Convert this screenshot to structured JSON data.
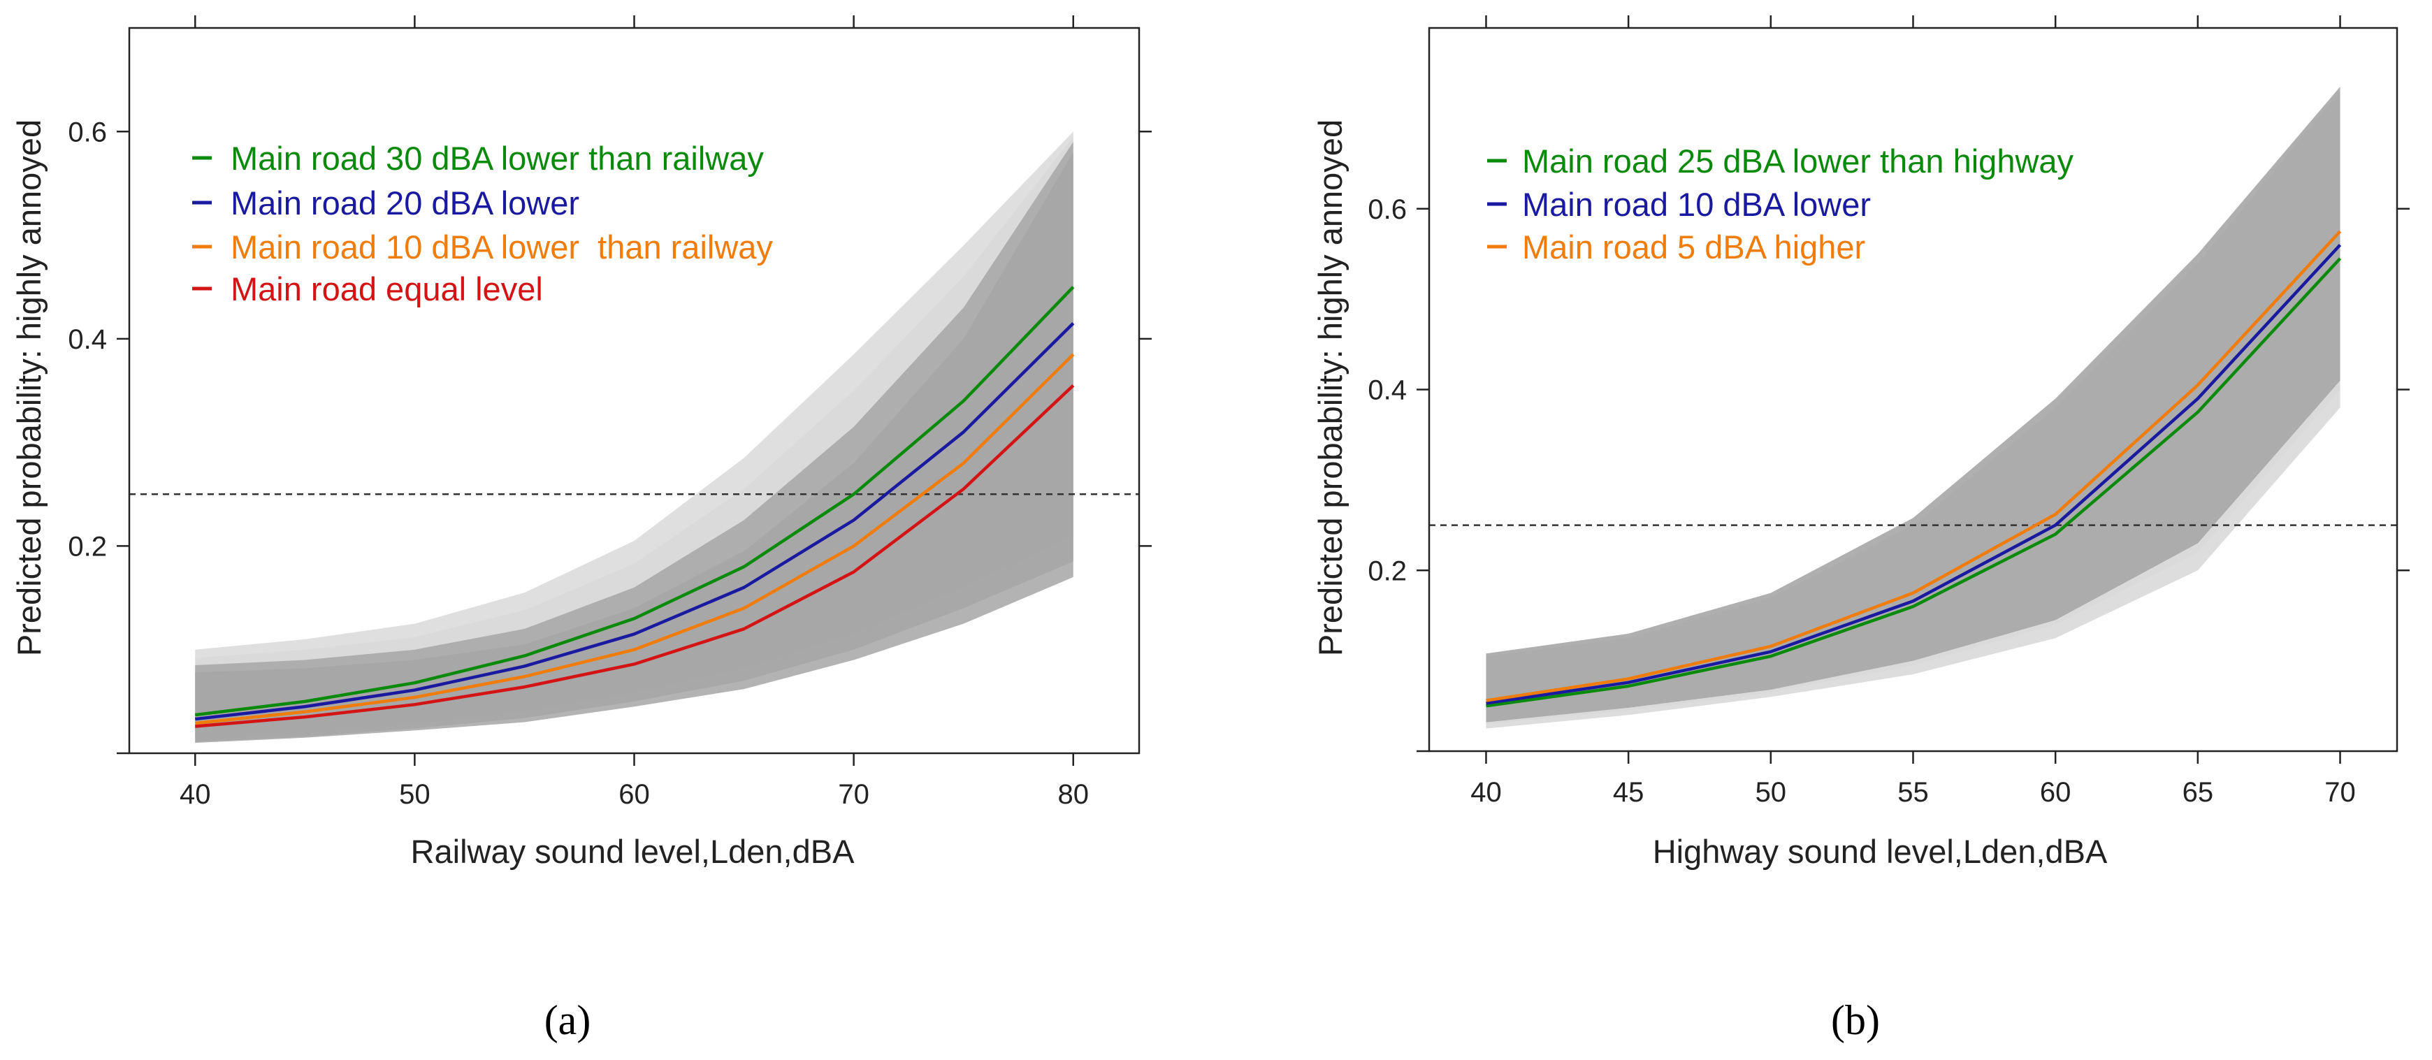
{
  "colors": {
    "green": "#0a8a0a",
    "blue": "#1a1aa0",
    "orange": "#f07c0c",
    "red": "#d41414",
    "band_dark": "#a6a6a6",
    "band_light": "#d9d9d9"
  },
  "chart_data": [
    {
      "type": "line",
      "panel_label": "(a)",
      "title": "",
      "xlabel": "Railway sound level,Lden,dBA",
      "ylabel": "Predicted probability: highly annoyed",
      "xlim": [
        37,
        83
      ],
      "ylim": [
        0,
        0.7
      ],
      "xticks": [
        40,
        50,
        60,
        70,
        80
      ],
      "yticks": [
        0.2,
        0.4,
        0.6
      ],
      "reference_line": 0.25,
      "legend_position": "top-left",
      "x": [
        40,
        45,
        50,
        55,
        60,
        65,
        70,
        75,
        80
      ],
      "series": [
        {
          "name": "Main road 30 dBA lower than railway",
          "color": "#0a8a0a",
          "values": [
            0.037,
            0.05,
            0.068,
            0.094,
            0.13,
            0.18,
            0.25,
            0.34,
            0.45
          ],
          "lower": [
            0.015,
            0.022,
            0.032,
            0.046,
            0.066,
            0.094,
            0.13,
            0.18,
            0.23
          ],
          "upper": [
            0.1,
            0.11,
            0.125,
            0.155,
            0.205,
            0.285,
            0.385,
            0.49,
            0.6
          ]
        },
        {
          "name": "Main road 20 dBA lower",
          "color": "#1a1aa0",
          "values": [
            0.033,
            0.045,
            0.061,
            0.084,
            0.115,
            0.16,
            0.225,
            0.31,
            0.415
          ],
          "lower": [
            0.013,
            0.019,
            0.028,
            0.04,
            0.058,
            0.082,
            0.115,
            0.16,
            0.21
          ],
          "upper": [
            0.092,
            0.1,
            0.112,
            0.138,
            0.183,
            0.255,
            0.35,
            0.46,
            0.595
          ]
        },
        {
          "name": "Main road 10 dBA lower  than railway",
          "color": "#f07c0c",
          "values": [
            0.029,
            0.04,
            0.054,
            0.074,
            0.1,
            0.14,
            0.2,
            0.28,
            0.385
          ],
          "lower": [
            0.011,
            0.016,
            0.024,
            0.034,
            0.05,
            0.07,
            0.1,
            0.14,
            0.185
          ],
          "upper": [
            0.085,
            0.09,
            0.1,
            0.12,
            0.16,
            0.225,
            0.315,
            0.43,
            0.59
          ]
        },
        {
          "name": "Main road equal level",
          "color": "#d41414",
          "values": [
            0.026,
            0.035,
            0.047,
            0.064,
            0.086,
            0.12,
            0.175,
            0.255,
            0.355
          ],
          "lower": [
            0.01,
            0.015,
            0.022,
            0.03,
            0.045,
            0.062,
            0.09,
            0.125,
            0.17
          ],
          "upper": [
            0.078,
            0.082,
            0.09,
            0.105,
            0.14,
            0.195,
            0.28,
            0.4,
            0.58
          ]
        }
      ]
    },
    {
      "type": "line",
      "panel_label": "(b)",
      "title": "",
      "xlabel": "Highway sound level,Lden,dBA",
      "ylabel": "Predicted probability: highly annoyed",
      "xlim": [
        38,
        72
      ],
      "ylim": [
        0,
        0.8
      ],
      "xticks": [
        40,
        45,
        50,
        55,
        60,
        65,
        70
      ],
      "yticks": [
        0.2,
        0.4,
        0.6
      ],
      "reference_line": 0.25,
      "legend_position": "top-left",
      "x": [
        40,
        45,
        50,
        55,
        60,
        65,
        70
      ],
      "series": [
        {
          "name": "Main road 25 dBA lower than highway",
          "color": "#0a8a0a",
          "values": [
            0.05,
            0.072,
            0.105,
            0.16,
            0.24,
            0.375,
            0.545
          ],
          "lower": [
            0.025,
            0.04,
            0.06,
            0.085,
            0.125,
            0.2,
            0.38
          ],
          "upper": [
            0.1,
            0.12,
            0.165,
            0.245,
            0.375,
            0.535,
            0.72
          ]
        },
        {
          "name": "Main road 10 dBA lower",
          "color": "#1a1aa0",
          "values": [
            0.053,
            0.076,
            0.11,
            0.166,
            0.25,
            0.39,
            0.56
          ],
          "lower": [
            0.03,
            0.045,
            0.065,
            0.095,
            0.14,
            0.22,
            0.4
          ],
          "upper": [
            0.105,
            0.125,
            0.17,
            0.25,
            0.38,
            0.54,
            0.73
          ]
        },
        {
          "name": "Main road 5 dBA higher",
          "color": "#f07c0c",
          "values": [
            0.056,
            0.08,
            0.116,
            0.175,
            0.262,
            0.405,
            0.575
          ],
          "lower": [
            0.032,
            0.048,
            0.068,
            0.1,
            0.145,
            0.23,
            0.41
          ],
          "upper": [
            0.108,
            0.13,
            0.175,
            0.258,
            0.39,
            0.55,
            0.735
          ]
        }
      ]
    }
  ]
}
